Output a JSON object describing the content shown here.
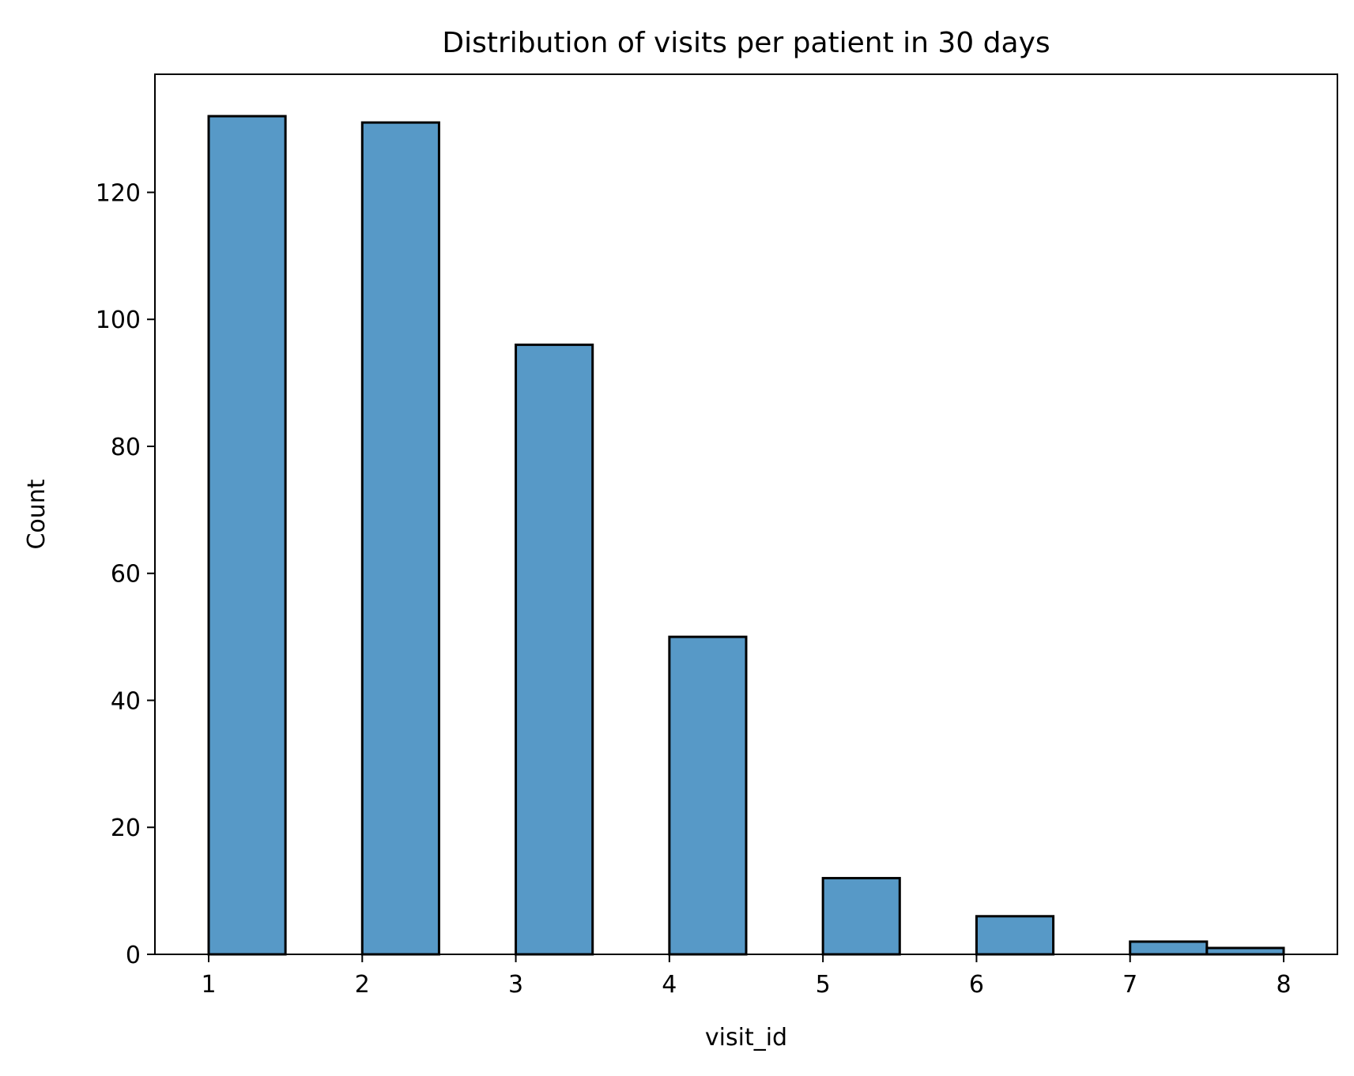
{
  "chart_data": {
    "type": "bar",
    "title": "Distribution of visits per patient in 30 days",
    "xlabel": "visit_id",
    "ylabel": "Count",
    "xlim": [
      0.65,
      8.35
    ],
    "ylim": [
      0,
      138.6
    ],
    "x_ticks": [
      1,
      2,
      3,
      4,
      5,
      6,
      7,
      8
    ],
    "y_ticks": [
      0,
      20,
      40,
      60,
      80,
      100,
      120
    ],
    "bins": [
      {
        "x0": 1.0,
        "x1": 1.5,
        "count": 132
      },
      {
        "x0": 1.5,
        "x1": 2.0,
        "count": 0
      },
      {
        "x0": 2.0,
        "x1": 2.5,
        "count": 131
      },
      {
        "x0": 2.5,
        "x1": 3.0,
        "count": 0
      },
      {
        "x0": 3.0,
        "x1": 3.5,
        "count": 96
      },
      {
        "x0": 3.5,
        "x1": 4.0,
        "count": 0
      },
      {
        "x0": 4.0,
        "x1": 4.5,
        "count": 50
      },
      {
        "x0": 4.5,
        "x1": 5.0,
        "count": 0
      },
      {
        "x0": 5.0,
        "x1": 5.5,
        "count": 12
      },
      {
        "x0": 5.5,
        "x1": 6.0,
        "count": 0
      },
      {
        "x0": 6.0,
        "x1": 6.5,
        "count": 6
      },
      {
        "x0": 6.5,
        "x1": 7.0,
        "count": 0
      },
      {
        "x0": 7.0,
        "x1": 7.5,
        "count": 2
      },
      {
        "x0": 7.5,
        "x1": 8.0,
        "count": 1
      }
    ],
    "grid": false,
    "legend": "none",
    "colors": {
      "bar_fill": "#5799c7",
      "bar_edge": "#000000",
      "axes": "#000000"
    }
  }
}
